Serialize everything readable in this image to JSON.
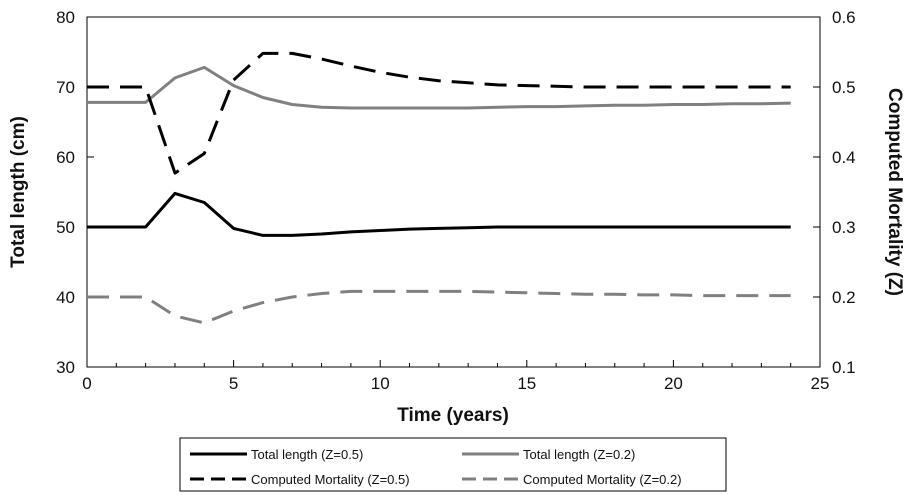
{
  "chart_data": {
    "type": "line",
    "xlabel": "Time (years)",
    "ylabel": "Total length (cm)",
    "y2label": "Computed Mortality (Z)",
    "xlim": [
      0,
      25
    ],
    "ylim": [
      30,
      80
    ],
    "y2lim": [
      0.1,
      0.6
    ],
    "xticks": [
      "0",
      "5",
      "10",
      "15",
      "20",
      "25"
    ],
    "yticks": [
      "30",
      "40",
      "50",
      "60",
      "70",
      "80"
    ],
    "y2ticks": [
      "0.1",
      "0.2",
      "0.3",
      "0.4",
      "0.5",
      "0.6"
    ],
    "grid": false,
    "legend_placement": "bottom",
    "x": [
      0,
      1,
      2,
      3,
      4,
      5,
      6,
      7,
      8,
      9,
      10,
      11,
      12,
      13,
      14,
      15,
      16,
      17,
      18,
      19,
      20,
      21,
      22,
      23,
      24
    ],
    "series": [
      {
        "name": "Total length (Z=0.5)",
        "axis": "left",
        "color": "#000000",
        "dash": "solid",
        "values": [
          50,
          50,
          50,
          54.8,
          53.5,
          49.8,
          48.8,
          48.8,
          49,
          49.3,
          49.5,
          49.7,
          49.8,
          49.9,
          50,
          50,
          50,
          50,
          50,
          50,
          50,
          50,
          50,
          50,
          50
        ]
      },
      {
        "name": "Total length (Z=0.2)",
        "axis": "left",
        "color": "#808080",
        "dash": "solid",
        "values": [
          67.8,
          67.8,
          67.8,
          71.3,
          72.8,
          70.2,
          68.5,
          67.5,
          67.1,
          67,
          67,
          67,
          67,
          67,
          67.1,
          67.2,
          67.2,
          67.3,
          67.4,
          67.4,
          67.5,
          67.5,
          67.6,
          67.6,
          67.7
        ]
      },
      {
        "name": "Computed Mortality (Z=0.5)",
        "axis": "right",
        "color": "#000000",
        "dash": "dashed",
        "values": [
          0.5,
          0.5,
          0.5,
          0.377,
          0.405,
          0.51,
          0.548,
          0.548,
          0.54,
          0.53,
          0.521,
          0.514,
          0.509,
          0.506,
          0.503,
          0.502,
          0.501,
          0.5,
          0.5,
          0.5,
          0.5,
          0.5,
          0.5,
          0.5,
          0.5
        ]
      },
      {
        "name": "Computed Mortality (Z=0.2)",
        "axis": "right",
        "color": "#808080",
        "dash": "dashed",
        "values": [
          0.2,
          0.2,
          0.2,
          0.173,
          0.163,
          0.18,
          0.192,
          0.2,
          0.205,
          0.208,
          0.208,
          0.208,
          0.208,
          0.208,
          0.207,
          0.206,
          0.205,
          0.204,
          0.204,
          0.203,
          0.203,
          0.202,
          0.202,
          0.202,
          0.202
        ]
      }
    ]
  }
}
